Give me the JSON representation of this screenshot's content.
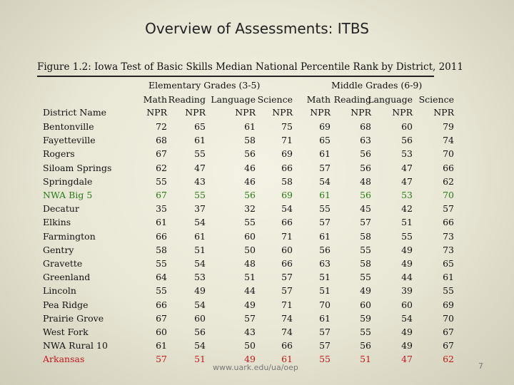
{
  "slide_title": "Overview of Assessments: ITBS",
  "figure_caption": "Figure 1.2: Iowa Test of Basic Skills Median National Percentile Rank by District, 2011",
  "groups": {
    "elementary": "Elementary Grades (3-5)",
    "middle": "Middle Grades (6-9)"
  },
  "column_header": {
    "district": "District Name",
    "subjects": [
      "Math",
      "Reading",
      "Language",
      "Science",
      "Math",
      "Reading",
      "Language",
      "Science"
    ],
    "npr": [
      "NPR",
      "NPR",
      "NPR",
      "NPR",
      "NPR",
      "NPR",
      "NPR",
      "NPR"
    ]
  },
  "rows": [
    {
      "name": "Bentonville",
      "values": [
        "72",
        "65",
        "61",
        "75",
        "69",
        "68",
        "60",
        "79"
      ],
      "style": "normal"
    },
    {
      "name": "Fayetteville",
      "values": [
        "68",
        "61",
        "58",
        "71",
        "65",
        "63",
        "56",
        "74"
      ],
      "style": "normal"
    },
    {
      "name": "Rogers",
      "values": [
        "67",
        "55",
        "56",
        "69",
        "61",
        "56",
        "53",
        "70"
      ],
      "style": "normal"
    },
    {
      "name": "Siloam Springs",
      "values": [
        "62",
        "47",
        "46",
        "66",
        "57",
        "56",
        "47",
        "66"
      ],
      "style": "normal"
    },
    {
      "name": "Springdale",
      "values": [
        "55",
        "43",
        "46",
        "58",
        "54",
        "48",
        "47",
        "62"
      ],
      "style": "normal"
    },
    {
      "name": "NWA Big 5",
      "values": [
        "67",
        "55",
        "56",
        "69",
        "61",
        "56",
        "53",
        "70"
      ],
      "style": "green"
    },
    {
      "name": "Decatur",
      "values": [
        "35",
        "37",
        "32",
        "54",
        "55",
        "45",
        "42",
        "57"
      ],
      "style": "normal"
    },
    {
      "name": "Elkins",
      "values": [
        "61",
        "54",
        "55",
        "66",
        "57",
        "57",
        "51",
        "66"
      ],
      "style": "normal"
    },
    {
      "name": "Farmington",
      "values": [
        "66",
        "61",
        "60",
        "71",
        "61",
        "58",
        "55",
        "73"
      ],
      "style": "normal"
    },
    {
      "name": "Gentry",
      "values": [
        "58",
        "51",
        "50",
        "60",
        "56",
        "55",
        "49",
        "73"
      ],
      "style": "normal"
    },
    {
      "name": "Gravette",
      "values": [
        "55",
        "54",
        "48",
        "66",
        "63",
        "58",
        "49",
        "65"
      ],
      "style": "normal"
    },
    {
      "name": "Greenland",
      "values": [
        "64",
        "53",
        "51",
        "57",
        "51",
        "55",
        "44",
        "61"
      ],
      "style": "normal"
    },
    {
      "name": "Lincoln",
      "values": [
        "55",
        "49",
        "44",
        "57",
        "51",
        "49",
        "39",
        "55"
      ],
      "style": "normal"
    },
    {
      "name": "Pea Ridge",
      "values": [
        "66",
        "54",
        "49",
        "71",
        "70",
        "60",
        "60",
        "69"
      ],
      "style": "normal"
    },
    {
      "name": "Prairie Grove",
      "values": [
        "67",
        "60",
        "57",
        "74",
        "61",
        "59",
        "54",
        "70"
      ],
      "style": "normal"
    },
    {
      "name": "West Fork",
      "values": [
        "60",
        "56",
        "43",
        "74",
        "57",
        "55",
        "49",
        "67"
      ],
      "style": "normal"
    },
    {
      "name": "NWA Rural 10",
      "values": [
        "61",
        "54",
        "50",
        "66",
        "57",
        "56",
        "49",
        "67"
      ],
      "style": "normal"
    },
    {
      "name": "Arkansas",
      "values": [
        "57",
        "51",
        "49",
        "61",
        "55",
        "51",
        "47",
        "62"
      ],
      "style": "red"
    }
  ],
  "footer_url": "www.uark.edu/ua/oep",
  "page_number": "7"
}
